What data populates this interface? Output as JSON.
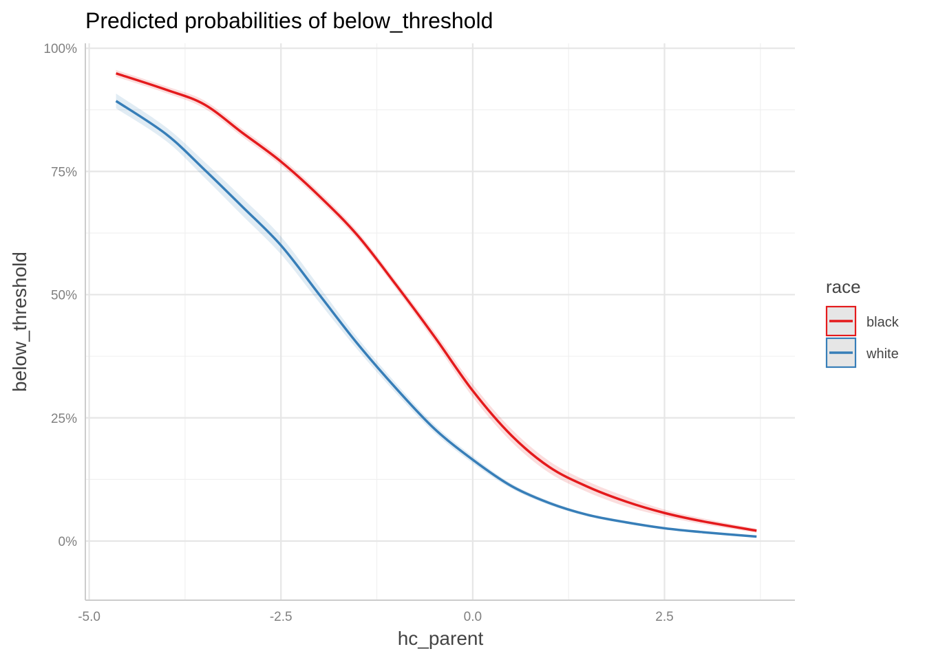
{
  "chart_data": {
    "type": "line",
    "title": "Predicted probabilities of below_threshold",
    "xlabel": "hc_parent",
    "ylabel": "below_threshold",
    "xlim": [
      -5.05,
      4.2
    ],
    "ylim": [
      -0.12,
      1.01
    ],
    "x_ticks": [
      {
        "value": -5.0,
        "label": "-5.0"
      },
      {
        "value": -2.5,
        "label": "-2.5"
      },
      {
        "value": 0.0,
        "label": "0.0"
      },
      {
        "value": 2.5,
        "label": "2.5"
      }
    ],
    "y_ticks": [
      {
        "value": 0.0,
        "label": "0%"
      },
      {
        "value": 0.25,
        "label": "25%"
      },
      {
        "value": 0.5,
        "label": "50%"
      },
      {
        "value": 0.75,
        "label": "75%"
      },
      {
        "value": 1.0,
        "label": "100%"
      }
    ],
    "grid": true,
    "legend": {
      "title": "race",
      "placement": "right"
    },
    "x": [
      -4.65,
      -4.0,
      -3.5,
      -3.0,
      -2.5,
      -2.0,
      -1.5,
      -1.0,
      -0.5,
      0.0,
      0.5,
      1.0,
      1.5,
      2.0,
      2.5,
      3.0,
      3.7
    ],
    "series": [
      {
        "name": "black",
        "color": "#e41a1c",
        "values": [
          0.949,
          0.916,
          0.886,
          0.828,
          0.77,
          0.7,
          0.62,
          0.52,
          0.415,
          0.305,
          0.215,
          0.15,
          0.11,
          0.08,
          0.057,
          0.04,
          0.021
        ],
        "lower": [
          0.942,
          0.909,
          0.878,
          0.82,
          0.762,
          0.692,
          0.612,
          0.512,
          0.405,
          0.292,
          0.202,
          0.138,
          0.099,
          0.07,
          0.05,
          0.034,
          0.017
        ],
        "upper": [
          0.956,
          0.923,
          0.894,
          0.836,
          0.778,
          0.708,
          0.628,
          0.528,
          0.425,
          0.318,
          0.228,
          0.162,
          0.121,
          0.09,
          0.064,
          0.046,
          0.025
        ]
      },
      {
        "name": "white",
        "color": "#377eb8",
        "values": [
          0.893,
          0.826,
          0.754,
          0.678,
          0.6,
          0.5,
          0.4,
          0.31,
          0.228,
          0.165,
          0.112,
          0.077,
          0.053,
          0.038,
          0.026,
          0.018,
          0.009
        ],
        "lower": [
          0.878,
          0.812,
          0.738,
          0.66,
          0.582,
          0.484,
          0.388,
          0.3,
          0.22,
          0.158,
          0.107,
          0.073,
          0.05,
          0.035,
          0.024,
          0.016,
          0.007
        ],
        "upper": [
          0.908,
          0.84,
          0.77,
          0.696,
          0.618,
          0.516,
          0.412,
          0.32,
          0.236,
          0.172,
          0.117,
          0.081,
          0.056,
          0.041,
          0.028,
          0.02,
          0.011
        ]
      }
    ]
  }
}
